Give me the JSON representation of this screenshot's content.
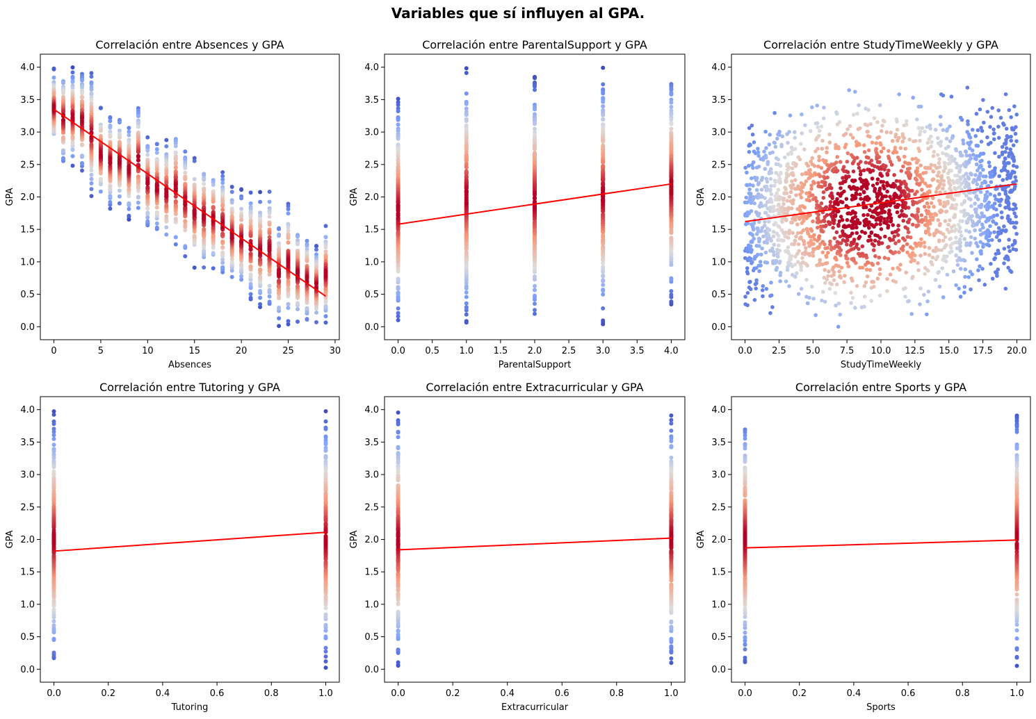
{
  "figure_title": "Variables que sí influyen al GPA.",
  "colors": {
    "fit_line": "#ff0000",
    "colormap": "coolwarm",
    "low": "#3b4cc0",
    "mid": "#dddddd",
    "high": "#b40426"
  },
  "chart_data": [
    {
      "type": "scatter",
      "title": "Correlación entre Absences y GPA",
      "xlabel": "Absences",
      "ylabel": "GPA",
      "xlim": [
        -1.45,
        30.45
      ],
      "ylim": [
        -0.2,
        4.2
      ],
      "xticks": [
        "0",
        "5",
        "10",
        "15",
        "20",
        "25",
        "30"
      ],
      "xtick_values": [
        0,
        5,
        10,
        15,
        20,
        25,
        30
      ],
      "yticks": [
        "0.0",
        "0.5",
        "1.0",
        "1.5",
        "2.0",
        "2.5",
        "3.0",
        "3.5",
        "4.0"
      ],
      "ytick_values": [
        0,
        0.5,
        1,
        1.5,
        2,
        2.5,
        3,
        3.5,
        4
      ],
      "x_categories": [
        0,
        1,
        2,
        3,
        4,
        5,
        6,
        7,
        8,
        9,
        10,
        11,
        12,
        13,
        14,
        15,
        16,
        17,
        18,
        19,
        20,
        21,
        22,
        23,
        24,
        25,
        26,
        27,
        28,
        29
      ],
      "gpa_range_by_x": [
        [
          2.73,
          4.0
        ],
        [
          2.43,
          4.0
        ],
        [
          2.45,
          4.0
        ],
        [
          2.35,
          4.0
        ],
        [
          1.96,
          3.98
        ],
        [
          1.9,
          3.43
        ],
        [
          1.77,
          3.33
        ],
        [
          1.8,
          3.31
        ],
        [
          1.65,
          3.2
        ],
        [
          1.64,
          3.51
        ],
        [
          1.45,
          2.98
        ],
        [
          1.38,
          2.92
        ],
        [
          1.2,
          2.93
        ],
        [
          1.12,
          3.15
        ],
        [
          1.0,
          2.85
        ],
        [
          0.88,
          2.65
        ],
        [
          0.8,
          2.63
        ],
        [
          0.82,
          2.5
        ],
        [
          0.7,
          2.45
        ],
        [
          0.62,
          2.2
        ],
        [
          0.55,
          2.13
        ],
        [
          0.37,
          2.13
        ],
        [
          0.27,
          2.08
        ],
        [
          0.2,
          2.2
        ],
        [
          0.0,
          1.65
        ],
        [
          0.0,
          1.98
        ],
        [
          0.0,
          1.63
        ],
        [
          0.0,
          1.47
        ],
        [
          0.0,
          1.27
        ],
        [
          0.0,
          1.63
        ]
      ],
      "fit_line": {
        "x": [
          0,
          29
        ],
        "y": [
          3.35,
          0.47
        ]
      }
    },
    {
      "type": "scatter",
      "title": "Correlación entre ParentalSupport y GPA",
      "xlabel": "ParentalSupport",
      "ylabel": "GPA",
      "xlim": [
        -0.2,
        4.2
      ],
      "ylim": [
        -0.2,
        4.2
      ],
      "xticks": [
        "0.0",
        "0.5",
        "1.0",
        "1.5",
        "2.0",
        "2.5",
        "3.0",
        "3.5",
        "4.0"
      ],
      "xtick_values": [
        0,
        0.5,
        1,
        1.5,
        2,
        2.5,
        3,
        3.5,
        4
      ],
      "yticks": [
        "0.0",
        "0.5",
        "1.0",
        "1.5",
        "2.0",
        "2.5",
        "3.0",
        "3.5",
        "4.0"
      ],
      "ytick_values": [
        0,
        0.5,
        1,
        1.5,
        2,
        2.5,
        3,
        3.5,
        4
      ],
      "x_categories": [
        0,
        1,
        2,
        3,
        4
      ],
      "gpa_range_by_x": [
        [
          0.0,
          3.57
        ],
        [
          0.0,
          4.0
        ],
        [
          0.0,
          3.87
        ],
        [
          0.03,
          4.0
        ],
        [
          0.3,
          4.0
        ]
      ],
      "fit_line": {
        "x": [
          0,
          4
        ],
        "y": [
          1.58,
          2.2
        ]
      }
    },
    {
      "type": "scatter",
      "title": "Correlación entre StudyTimeWeekly y GPA",
      "xlabel": "StudyTimeWeekly",
      "ylabel": "GPA",
      "xlim": [
        -1.0,
        21.0
      ],
      "ylim": [
        -0.2,
        4.2
      ],
      "xticks": [
        "0.0",
        "2.5",
        "5.0",
        "7.5",
        "10.0",
        "12.5",
        "15.0",
        "17.5",
        "20.0"
      ],
      "xtick_values": [
        0,
        2.5,
        5,
        7.5,
        10,
        12.5,
        15,
        17.5,
        20
      ],
      "yticks": [
        "0.0",
        "0.5",
        "1.0",
        "1.5",
        "2.0",
        "2.5",
        "3.0",
        "3.5",
        "4.0"
      ],
      "ytick_values": [
        0,
        0.5,
        1,
        1.5,
        2,
        2.5,
        3,
        3.5,
        4
      ],
      "x_range": [
        0,
        20
      ],
      "gpa_range": [
        0.0,
        4.0
      ],
      "fit_line": {
        "x": [
          0,
          20
        ],
        "y": [
          1.62,
          2.2
        ]
      }
    },
    {
      "type": "scatter",
      "title": "Correlación entre Tutoring y GPA",
      "xlabel": "Tutoring",
      "ylabel": "GPA",
      "xlim": [
        -0.05,
        1.05
      ],
      "ylim": [
        -0.2,
        4.2
      ],
      "xticks": [
        "0.0",
        "0.2",
        "0.4",
        "0.6",
        "0.8",
        "1.0"
      ],
      "xtick_values": [
        0,
        0.2,
        0.4,
        0.6,
        0.8,
        1.0
      ],
      "yticks": [
        "0.0",
        "0.5",
        "1.0",
        "1.5",
        "2.0",
        "2.5",
        "3.0",
        "3.5",
        "4.0"
      ],
      "ytick_values": [
        0,
        0.5,
        1,
        1.5,
        2,
        2.5,
        3,
        3.5,
        4
      ],
      "x_categories": [
        0,
        1
      ],
      "gpa_range_by_x": [
        [
          0.0,
          4.0
        ],
        [
          0.0,
          4.0
        ]
      ],
      "fit_line": {
        "x": [
          0,
          1
        ],
        "y": [
          1.82,
          2.11
        ]
      }
    },
    {
      "type": "scatter",
      "title": "Correlación entre Extracurricular y GPA",
      "xlabel": "Extracurricular",
      "ylabel": "GPA",
      "xlim": [
        -0.05,
        1.05
      ],
      "ylim": [
        -0.2,
        4.2
      ],
      "xticks": [
        "0.0",
        "0.2",
        "0.4",
        "0.6",
        "0.8",
        "1.0"
      ],
      "xtick_values": [
        0,
        0.2,
        0.4,
        0.6,
        0.8,
        1.0
      ],
      "yticks": [
        "0.0",
        "0.5",
        "1.0",
        "1.5",
        "2.0",
        "2.5",
        "3.0",
        "3.5",
        "4.0"
      ],
      "ytick_values": [
        0,
        0.5,
        1,
        1.5,
        2,
        2.5,
        3,
        3.5,
        4
      ],
      "x_categories": [
        0,
        1
      ],
      "gpa_range_by_x": [
        [
          0.0,
          4.0
        ],
        [
          0.0,
          4.0
        ]
      ],
      "fit_line": {
        "x": [
          0,
          1
        ],
        "y": [
          1.84,
          2.02
        ]
      }
    },
    {
      "type": "scatter",
      "title": "Correlación entre Sports y GPA",
      "xlabel": "Sports",
      "ylabel": "GPA",
      "xlim": [
        -0.05,
        1.05
      ],
      "ylim": [
        -0.2,
        4.2
      ],
      "xticks": [
        "0.0",
        "0.2",
        "0.4",
        "0.6",
        "0.8",
        "1.0"
      ],
      "xtick_values": [
        0,
        0.2,
        0.4,
        0.6,
        0.8,
        1.0
      ],
      "yticks": [
        "0.0",
        "0.5",
        "1.0",
        "1.5",
        "2.0",
        "2.5",
        "3.0",
        "3.5",
        "4.0"
      ],
      "ytick_values": [
        0,
        0.5,
        1,
        1.5,
        2,
        2.5,
        3,
        3.5,
        4
      ],
      "x_categories": [
        0,
        1
      ],
      "gpa_range_by_x": [
        [
          0.0,
          4.0
        ],
        [
          0.0,
          4.0
        ]
      ],
      "fit_line": {
        "x": [
          0,
          1
        ],
        "y": [
          1.87,
          1.99
        ]
      }
    }
  ]
}
